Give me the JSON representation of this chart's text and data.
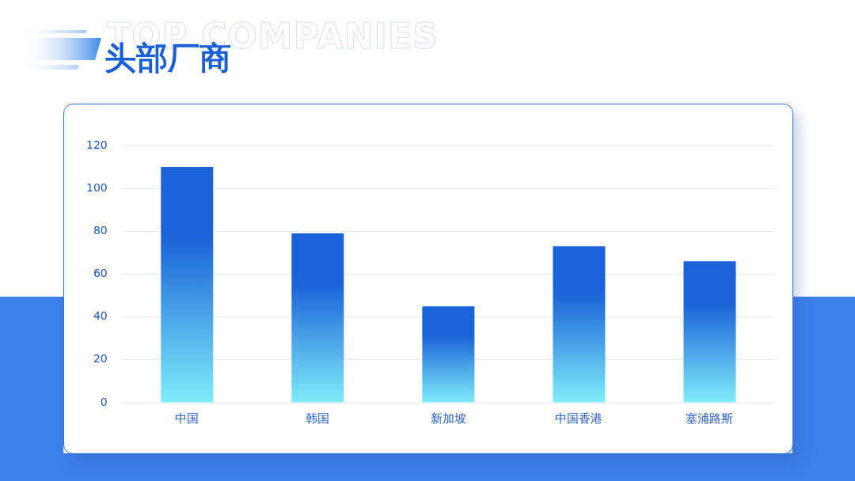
{
  "chart_data": {
    "type": "bar",
    "title": "头部厂商",
    "subtitle": "TOP COMPANIES",
    "categories": [
      "中国",
      "韩国",
      "新加坡",
      "中国香港",
      "塞浦路斯"
    ],
    "values": [
      110,
      79,
      45,
      73,
      66
    ],
    "color": "#1a63d8",
    "ylim": [
      0,
      120
    ],
    "yticks": [
      0,
      20,
      40,
      60,
      80,
      100,
      120
    ],
    "grid": "y"
  }
}
